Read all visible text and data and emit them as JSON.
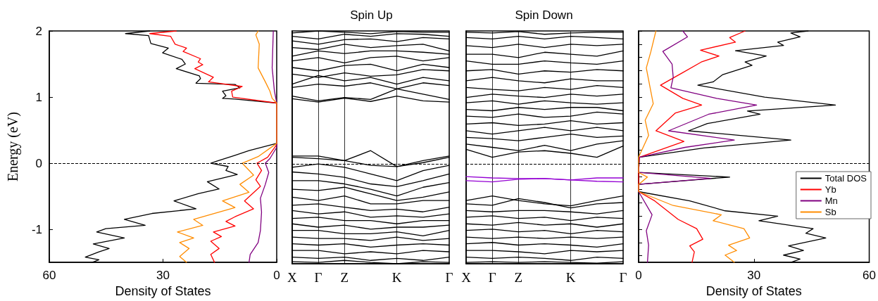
{
  "chart_data": [
    {
      "type": "line",
      "xlabel": "Density of States",
      "ylabel": "Energy (eV)",
      "xlim": [
        60,
        0
      ],
      "xticks": [
        60,
        30,
        0
      ],
      "ylim": [
        -1.5,
        2
      ],
      "yticks": [
        -1,
        0,
        1,
        2
      ],
      "marker": "none",
      "ref_lines": [
        {
          "axis": "y",
          "value": 0,
          "line_style": "dashed"
        }
      ],
      "series": [
        {
          "color": "#000000",
          "x": [
            33.5,
            39.9,
            33.8,
            33.2,
            28.6,
            30.1,
            25.0,
            24.1,
            26.5,
            20.4,
            20.1,
            21.3,
            11.0,
            9.7,
            14.3,
            13.4,
            14.3,
            11.0,
            0,
            0,
            7.3,
            11.0,
            15.8,
            17.4,
            12.8,
            13.4,
            10.4,
            18.3,
            15.2,
            20.7,
            27.1,
            21.3,
            32.9,
            40.2,
            34.7,
            45.1,
            47.5,
            40.2,
            48.4,
            44.2,
            46.9,
            50.5,
            46.9,
            48.7
          ],
          "values": [
            2.0,
            1.96,
            1.93,
            1.81,
            1.74,
            1.67,
            1.57,
            1.5,
            1.43,
            1.32,
            1.28,
            1.21,
            1.19,
            1.14,
            1.09,
            1.02,
            0.98,
            0.97,
            0.91,
            0.3,
            0.19,
            0.12,
            0.03,
            0.0,
            -0.05,
            -0.11,
            -0.17,
            -0.28,
            -0.39,
            -0.46,
            -0.57,
            -0.69,
            -0.76,
            -0.85,
            -0.94,
            -0.99,
            -1.04,
            -1.13,
            -1.22,
            -1.29,
            -1.34,
            -1.42,
            -1.46,
            -1.5
          ]
        },
        {
          "color": "#ff0000",
          "x": [
            26.5,
            33.5,
            28.0,
            26.8,
            23.8,
            24.7,
            20.1,
            20.7,
            19.5,
            21.6,
            16.7,
            18.0,
            9.1,
            11.9,
            11.6,
            0,
            0,
            2.4,
            5.2,
            4.0,
            5.5,
            4.3,
            8.5,
            6.1,
            11.0,
            13.4,
            11.0,
            16.7,
            14.6,
            17.4,
            15.2,
            17.4,
            16.4
          ],
          "values": [
            2.0,
            1.96,
            1.92,
            1.8,
            1.74,
            1.69,
            1.58,
            1.53,
            1.49,
            1.43,
            1.3,
            1.23,
            1.16,
            1.09,
            1.0,
            0.91,
            0.28,
            0.09,
            0.0,
            -0.11,
            -0.25,
            -0.35,
            -0.57,
            -0.69,
            -0.81,
            -0.88,
            -0.95,
            -1.04,
            -1.11,
            -1.18,
            -1.29,
            -1.38,
            -1.5
          ]
        },
        {
          "color": "#800080",
          "x": [
            0.9,
            1.2,
            0.6,
            0,
            0,
            1.8,
            3.0,
            2.1,
            3.0,
            4.3,
            4.0,
            4.3,
            4.9,
            7.0,
            7.3
          ],
          "values": [
            2.0,
            1.44,
            1.09,
            0.91,
            0.24,
            0.07,
            0.0,
            -0.14,
            -0.32,
            -0.53,
            -0.74,
            -1.02,
            -1.2,
            -1.38,
            -1.5
          ]
        },
        {
          "color": "#ff8c00",
          "x": [
            4.9,
            5.5,
            4.6,
            4.9,
            3.0,
            1.8,
            1.2,
            0,
            0,
            4.9,
            9.1,
            6.1,
            9.7,
            7.3,
            14.3,
            11.0,
            21.9,
            19.5,
            26.2,
            21.9,
            25.6,
            23.1,
            25.6,
            23.8
          ],
          "values": [
            2.0,
            1.94,
            1.8,
            1.44,
            1.23,
            1.09,
            0.98,
            0.91,
            0.3,
            0.1,
            0.0,
            -0.18,
            -0.32,
            -0.44,
            -0.57,
            -0.67,
            -0.85,
            -0.94,
            -1.04,
            -1.13,
            -1.2,
            -1.29,
            -1.41,
            -1.5
          ]
        }
      ]
    },
    {
      "type": "line",
      "title": "Spin Up",
      "categories": [
        "X",
        "Γ",
        "Z",
        null,
        "K",
        null,
        "Γ"
      ],
      "ylim": [
        -1.5,
        2
      ],
      "tick_labels": "x",
      "grid": "x",
      "marker": "none",
      "ref_lines": [
        {
          "axis": "y",
          "value": 0,
          "line_style": "dashed"
        }
      ],
      "series": [
        {
          "color": "#000000",
          "values": [
            0.98,
            0.93,
            0.99,
            0.94,
            1.02,
            0.95,
            0.93
          ]
        },
        {
          "color": "#000000",
          "values": [
            1.02,
            0.95,
            1.0,
            0.97,
            1.13,
            1.05,
            0.97
          ]
        },
        {
          "color": "#000000",
          "values": [
            1.15,
            1.2,
            1.17,
            1.22,
            1.13,
            1.22,
            1.18
          ]
        },
        {
          "color": "#000000",
          "values": [
            1.2,
            1.33,
            1.25,
            1.3,
            1.2,
            1.3,
            1.25
          ]
        },
        {
          "color": "#000000",
          "values": [
            1.35,
            1.3,
            1.37,
            1.32,
            1.34,
            1.42,
            1.4
          ]
        },
        {
          "color": "#000000",
          "values": [
            1.45,
            1.4,
            1.48,
            1.5,
            1.4,
            1.5,
            1.45
          ]
        },
        {
          "color": "#000000",
          "values": [
            1.55,
            1.6,
            1.52,
            1.6,
            1.62,
            1.55,
            1.6
          ]
        },
        {
          "color": "#000000",
          "values": [
            1.62,
            1.7,
            1.66,
            1.7,
            1.7,
            1.68,
            1.65
          ]
        },
        {
          "color": "#000000",
          "values": [
            1.75,
            1.72,
            1.8,
            1.75,
            1.78,
            1.8,
            1.7
          ]
        },
        {
          "color": "#000000",
          "values": [
            1.85,
            1.8,
            1.87,
            1.88,
            1.84,
            1.9,
            1.88
          ]
        },
        {
          "color": "#000000",
          "values": [
            1.92,
            1.88,
            1.95,
            1.92,
            1.96,
            1.95,
            1.92
          ]
        },
        {
          "color": "#000000",
          "values": [
            1.97,
            2.0,
            1.98,
            1.96,
            1.99,
            1.98,
            1.98
          ]
        },
        {
          "color": "#000000",
          "values": [
            0.12,
            0.12,
            0.05,
            0.2,
            -0.04,
            0.05,
            0.12
          ]
        },
        {
          "color": "#000000",
          "values": [
            0.1,
            0.08,
            0.05,
            -0.02,
            -0.04,
            0.02,
            0.1
          ]
        },
        {
          "color": "#000000",
          "values": [
            -0.05,
            0.0,
            -0.05,
            -0.15,
            -0.25,
            -0.1,
            -0.02
          ]
        },
        {
          "color": "#000000",
          "values": [
            -0.12,
            -0.15,
            -0.2,
            -0.3,
            -0.34,
            -0.25,
            -0.15
          ]
        },
        {
          "color": "#000000",
          "values": [
            -0.25,
            -0.25,
            -0.3,
            -0.38,
            -0.48,
            -0.35,
            -0.28
          ]
        },
        {
          "color": "#000000",
          "values": [
            -0.38,
            -0.4,
            -0.35,
            -0.45,
            -0.55,
            -0.5,
            -0.42
          ]
        },
        {
          "color": "#000000",
          "values": [
            -0.5,
            -0.55,
            -0.48,
            -0.6,
            -0.6,
            -0.55,
            -0.55
          ]
        },
        {
          "color": "#000000",
          "values": [
            -0.62,
            -0.6,
            -0.65,
            -0.7,
            -0.68,
            -0.72,
            -0.65
          ]
        },
        {
          "color": "#000000",
          "values": [
            -0.7,
            -0.75,
            -0.72,
            -0.8,
            -0.78,
            -0.8,
            -0.75
          ]
        },
        {
          "color": "#000000",
          "values": [
            -0.82,
            -0.8,
            -0.85,
            -0.85,
            -0.9,
            -0.85,
            -0.85
          ]
        },
        {
          "color": "#000000",
          "values": [
            -0.9,
            -0.95,
            -0.92,
            -0.98,
            -0.95,
            -0.95,
            -0.92
          ]
        },
        {
          "color": "#000000",
          "values": [
            -1.0,
            -1.0,
            -1.05,
            -1.05,
            -1.02,
            -1.08,
            -1.0
          ]
        },
        {
          "color": "#000000",
          "values": [
            -1.1,
            -1.12,
            -1.12,
            -1.15,
            -1.1,
            -1.15,
            -1.12
          ]
        },
        {
          "color": "#000000",
          "values": [
            -1.2,
            -1.22,
            -1.2,
            -1.25,
            -1.22,
            -1.2,
            -1.22
          ]
        },
        {
          "color": "#000000",
          "values": [
            -1.3,
            -1.3,
            -1.35,
            -1.32,
            -1.35,
            -1.3,
            -1.32
          ]
        },
        {
          "color": "#000000",
          "values": [
            -1.4,
            -1.42,
            -1.4,
            -1.45,
            -1.42,
            -1.45,
            -1.4
          ]
        },
        {
          "color": "#000000",
          "values": [
            -1.47,
            -1.48,
            -1.45,
            -1.48,
            -1.5,
            -1.47,
            -1.48
          ]
        }
      ]
    },
    {
      "type": "line",
      "title": "Spin Down",
      "categories": [
        "X",
        "Γ",
        "Z",
        null,
        "K",
        null,
        "Γ"
      ],
      "ylim": [
        -1.5,
        2
      ],
      "tick_labels": "x",
      "grid": "x",
      "marker": "none",
      "ref_lines": [
        {
          "axis": "y",
          "value": 0,
          "line_style": "dashed"
        }
      ],
      "series": [
        {
          "color": "#000000",
          "values": [
            0.22,
            0.1,
            0.18,
            0.2,
            0.16,
            0.1,
            0.27
          ]
        },
        {
          "color": "#000000",
          "values": [
            0.3,
            0.25,
            0.2,
            0.28,
            0.2,
            0.3,
            0.35
          ]
        },
        {
          "color": "#000000",
          "values": [
            0.4,
            0.38,
            0.35,
            0.4,
            0.45,
            0.4,
            0.42
          ]
        },
        {
          "color": "#000000",
          "values": [
            0.5,
            0.45,
            0.5,
            0.55,
            0.5,
            0.55,
            0.5
          ]
        },
        {
          "color": "#000000",
          "values": [
            0.6,
            0.62,
            0.58,
            0.6,
            0.65,
            0.6,
            0.62
          ]
        },
        {
          "color": "#000000",
          "values": [
            0.72,
            0.7,
            0.75,
            0.7,
            0.72,
            0.78,
            0.75
          ]
        },
        {
          "color": "#000000",
          "values": [
            0.82,
            0.8,
            0.85,
            0.82,
            0.85,
            0.85,
            0.8
          ]
        },
        {
          "color": "#000000",
          "values": [
            0.92,
            0.95,
            0.9,
            0.95,
            0.92,
            0.9,
            0.92
          ]
        },
        {
          "color": "#000000",
          "values": [
            1.0,
            1.05,
            1.02,
            1.0,
            1.05,
            1.02,
            1.05
          ]
        },
        {
          "color": "#000000",
          "values": [
            1.15,
            1.12,
            1.1,
            1.15,
            1.12,
            1.18,
            1.15
          ]
        },
        {
          "color": "#000000",
          "values": [
            1.25,
            1.3,
            1.25,
            1.22,
            1.28,
            1.25,
            1.25
          ]
        },
        {
          "color": "#000000",
          "values": [
            1.4,
            1.42,
            1.35,
            1.4,
            1.38,
            1.42,
            1.4
          ]
        },
        {
          "color": "#000000",
          "values": [
            1.55,
            1.5,
            1.5,
            1.55,
            1.52,
            1.5,
            1.55
          ]
        },
        {
          "color": "#000000",
          "values": [
            1.65,
            1.65,
            1.6,
            1.68,
            1.65,
            1.62,
            1.7
          ]
        },
        {
          "color": "#000000",
          "values": [
            1.78,
            1.75,
            1.8,
            1.75,
            1.8,
            1.78,
            1.8
          ]
        },
        {
          "color": "#000000",
          "values": [
            1.9,
            1.88,
            1.92,
            1.88,
            1.92,
            1.9,
            1.88
          ]
        },
        {
          "color": "#000000",
          "values": [
            1.98,
            1.97,
            1.99,
            1.95,
            1.97,
            1.98,
            1.98
          ]
        },
        {
          "color": "#9400d3",
          "values": [
            -0.19,
            -0.21,
            -0.22,
            -0.22,
            -0.24,
            -0.21,
            -0.21
          ]
        },
        {
          "color": "#9400d3",
          "values": [
            -0.25,
            -0.27,
            -0.23,
            -0.22,
            -0.24,
            -0.26,
            -0.27
          ]
        },
        {
          "color": "#000000",
          "values": [
            -0.55,
            -0.48,
            -0.55,
            -0.6,
            -0.63,
            -0.55,
            -0.48
          ]
        },
        {
          "color": "#000000",
          "values": [
            -0.6,
            -0.62,
            -0.52,
            -0.58,
            -0.66,
            -0.6,
            -0.58
          ]
        },
        {
          "color": "#000000",
          "values": [
            -0.7,
            -0.72,
            -0.7,
            -0.7,
            -0.72,
            -0.75,
            -0.7
          ]
        },
        {
          "color": "#000000",
          "values": [
            -0.8,
            -0.78,
            -0.82,
            -0.8,
            -0.85,
            -0.8,
            -0.82
          ]
        },
        {
          "color": "#000000",
          "values": [
            -0.9,
            -0.92,
            -0.88,
            -0.92,
            -0.9,
            -0.95,
            -0.9
          ]
        },
        {
          "color": "#000000",
          "values": [
            -1.0,
            -0.98,
            -1.02,
            -1.0,
            -1.05,
            -1.0,
            -1.02
          ]
        },
        {
          "color": "#000000",
          "values": [
            -1.1,
            -1.12,
            -1.1,
            -1.12,
            -1.1,
            -1.12,
            -1.1
          ]
        },
        {
          "color": "#000000",
          "values": [
            -1.2,
            -1.18,
            -1.22,
            -1.2,
            -1.22,
            -1.25,
            -1.2
          ]
        },
        {
          "color": "#000000",
          "values": [
            -1.3,
            -1.3,
            -1.32,
            -1.35,
            -1.3,
            -1.32,
            -1.3
          ]
        },
        {
          "color": "#000000",
          "values": [
            -1.4,
            -1.42,
            -1.4,
            -1.42,
            -1.45,
            -1.4,
            -1.42
          ]
        },
        {
          "color": "#000000",
          "values": [
            -1.48,
            -1.47,
            -1.48,
            -1.47,
            -1.48,
            -1.49,
            -1.47
          ]
        }
      ]
    },
    {
      "type": "line",
      "xlabel": "Density of States",
      "xlim": [
        0,
        60
      ],
      "xticks": [
        0,
        30,
        60
      ],
      "ylim": [
        -1.5,
        2
      ],
      "yticks": [
        {
          "value": -1.4,
          "label": null
        },
        {
          "value": -1.2,
          "label": null
        },
        {
          "value": -1,
          "label": null
        },
        {
          "value": -0.8,
          "label": null
        },
        {
          "value": -0.6,
          "label": null
        },
        {
          "value": -0.4,
          "label": null
        },
        {
          "value": -0.2,
          "label": null
        },
        {
          "value": 0,
          "label": null
        },
        {
          "value": 0.2,
          "label": null
        },
        {
          "value": 0.4,
          "label": null
        },
        {
          "value": 0.6,
          "label": null
        },
        {
          "value": 0.8,
          "label": null
        },
        {
          "value": 1,
          "label": null
        },
        {
          "value": 1.2,
          "label": null
        },
        {
          "value": 1.4,
          "label": null
        },
        {
          "value": 1.6,
          "label": null
        },
        {
          "value": 1.8,
          "label": null
        },
        {
          "value": 2,
          "label": null
        }
      ],
      "tick_labels": "x",
      "legend": "right",
      "marker": "none",
      "ref_lines": [
        {
          "axis": "y",
          "value": 0,
          "line_style": "dashed"
        }
      ],
      "series": [
        {
          "name": "Total DOS",
          "color": "#000000",
          "x": [
            44.1,
            39.6,
            42.0,
            36.2,
            37.7,
            25.2,
            33.2,
            27.7,
            29.5,
            21.9,
            19.4,
            15.4,
            32.8,
            51.2,
            28.3,
            31.6,
            17.9,
            13.0,
            39.6,
            17.0,
            0.2,
            0,
            23.7,
            0,
            0,
            13.3,
            22.5,
            36.2,
            31.3,
            45.4,
            43.5,
            48.7,
            39.0,
            42.9,
            37.7,
            42.0,
            39.6
          ],
          "values": [
            2.0,
            1.97,
            1.91,
            1.83,
            1.78,
            1.7,
            1.62,
            1.53,
            1.48,
            1.34,
            1.23,
            1.18,
            1.0,
            0.88,
            0.79,
            0.74,
            0.6,
            0.49,
            0.35,
            0.23,
            0.09,
            -0.14,
            -0.21,
            -0.32,
            -0.43,
            -0.57,
            -0.72,
            -0.8,
            -0.87,
            -0.99,
            -1.06,
            -1.13,
            -1.25,
            -1.32,
            -1.39,
            -1.45,
            -1.5
          ]
        },
        {
          "name": "Yb",
          "color": "#ff0000",
          "x": [
            27.7,
            23.7,
            25.2,
            16.1,
            20.9,
            16.3,
            11.2,
            5.7,
            11.5,
            16.4,
            9.6,
            4.5,
            11.8,
            6.0,
            0.2,
            0,
            0,
            4.2,
            10.3,
            15.1,
            16.7,
            13.3,
            14.5,
            13.9
          ],
          "values": [
            2.0,
            1.9,
            1.83,
            1.71,
            1.62,
            1.53,
            1.36,
            1.18,
            0.98,
            0.88,
            0.76,
            0.49,
            0.33,
            0.21,
            0.09,
            -0.14,
            -0.43,
            -0.57,
            -0.85,
            -0.99,
            -1.15,
            -1.25,
            -1.34,
            -1.5
          ]
        },
        {
          "name": "Mn",
          "color": "#800080",
          "x": [
            11.5,
            12.7,
            6.3,
            8.7,
            9.0,
            8.4,
            20.3,
            30.7,
            18.2,
            7.8,
            24.9,
            12.1,
            0.2,
            0,
            18.8,
            0,
            0,
            3.5,
            2.0,
            2.6,
            2.3
          ],
          "values": [
            2.0,
            1.91,
            1.69,
            1.5,
            1.3,
            1.14,
            0.98,
            0.88,
            0.74,
            0.49,
            0.35,
            0.24,
            0.09,
            -0.14,
            -0.23,
            -0.32,
            -0.43,
            -0.78,
            -1.02,
            -1.24,
            -1.5
          ]
        },
        {
          "name": "Sb",
          "color": "#ff8c00",
          "x": [
            4.5,
            3.2,
            2.0,
            3.8,
            1.7,
            2.6,
            0,
            0,
            2.3,
            0,
            0,
            9.0,
            21.5,
            19.4,
            27.4,
            28.9,
            23.4,
            25.5,
            22.5,
            24.9
          ],
          "values": [
            2.0,
            1.69,
            1.44,
            0.9,
            0.65,
            0.42,
            0.09,
            -0.14,
            -0.21,
            -0.32,
            -0.43,
            -0.64,
            -0.78,
            -0.87,
            -0.99,
            -1.13,
            -1.24,
            -1.32,
            -1.39,
            -1.5
          ]
        }
      ]
    }
  ]
}
